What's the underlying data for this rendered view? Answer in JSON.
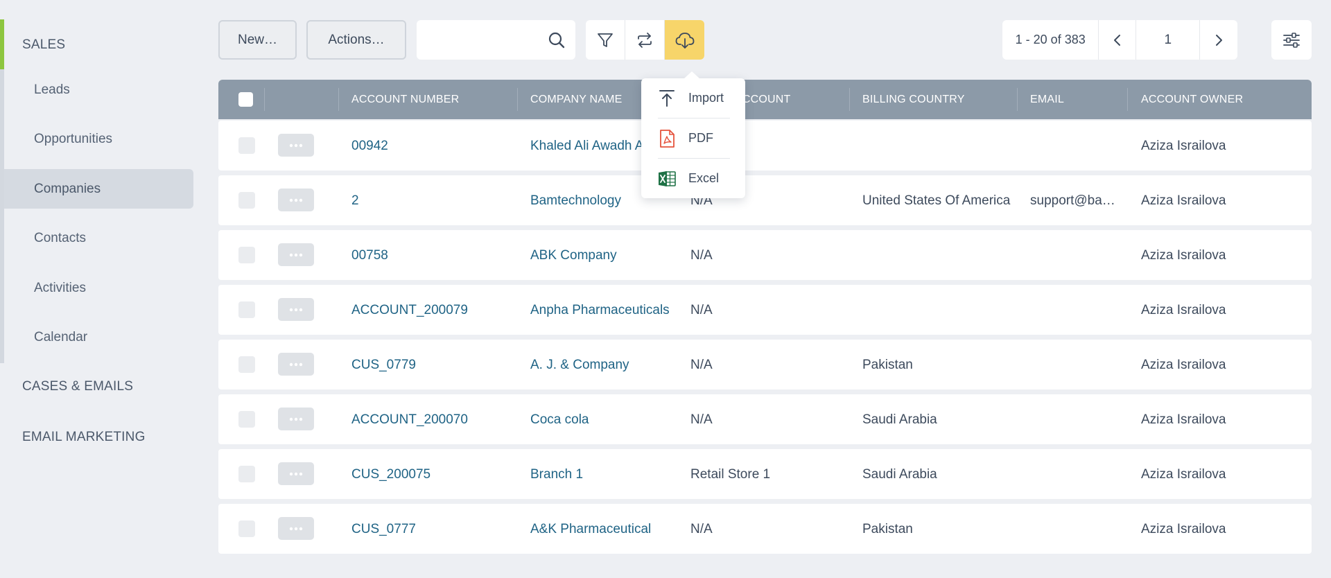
{
  "sidebar": {
    "sections": [
      {
        "title": "SALES"
      },
      {
        "title": "CASES & EMAILS"
      },
      {
        "title": "EMAIL MARKETING"
      }
    ],
    "items": [
      {
        "label": "Leads"
      },
      {
        "label": "Opportunities"
      },
      {
        "label": "Companies"
      },
      {
        "label": "Contacts"
      },
      {
        "label": "Activities"
      },
      {
        "label": "Calendar"
      }
    ],
    "active_item": "Companies",
    "accent_color": "#8dc63f"
  },
  "toolbar": {
    "new_label": "New…",
    "actions_label": "Actions…",
    "search": {
      "value": "",
      "placeholder": ""
    },
    "icons": [
      "filter-icon",
      "refresh-icon",
      "cloud-download-icon"
    ],
    "highlight_color": "#f7d56a"
  },
  "pagination": {
    "range": "1 - 20 of 383",
    "page": "1"
  },
  "export_menu": {
    "items": [
      {
        "label": "Import",
        "icon": "upload-icon"
      },
      {
        "label": "PDF",
        "icon": "pdf-file-icon"
      },
      {
        "label": "Excel",
        "icon": "excel-file-icon"
      }
    ]
  },
  "table": {
    "columns": [
      "ACCOUNT NUMBER",
      "COMPANY NAME",
      "ACCOUNT",
      "BILLING COUNTRY",
      "EMAIL",
      "ACCOUNT OWNER"
    ],
    "header_color": "#8c9aa8",
    "link_color": "#1f6385",
    "rows": [
      {
        "account": "00942",
        "company": "Khaled Ali Awadh Alrwyla",
        "parent": "",
        "country": "",
        "email": "",
        "owner": "Aziza Israilova"
      },
      {
        "account": "2",
        "company": "Bamtechnology",
        "parent": "N/A",
        "country": "United States Of America",
        "email": "support@ba…",
        "owner": "Aziza Israilova"
      },
      {
        "account": "00758",
        "company": "ABK Company",
        "parent": "N/A",
        "country": "",
        "email": "",
        "owner": "Aziza Israilova"
      },
      {
        "account": "ACCOUNT_200079",
        "company": "Anpha Pharmaceuticals",
        "parent": "N/A",
        "country": "",
        "email": "",
        "owner": "Aziza Israilova"
      },
      {
        "account": "CUS_0779",
        "company": "A. J. & Company",
        "parent": "N/A",
        "country": "Pakistan",
        "email": "",
        "owner": "Aziza Israilova"
      },
      {
        "account": "ACCOUNT_200070",
        "company": "Coca cola",
        "parent": "N/A",
        "country": "Saudi Arabia",
        "email": "",
        "owner": "Aziza Israilova"
      },
      {
        "account": "CUS_200075",
        "company": "Branch 1",
        "parent": "Retail Store 1",
        "country": "Saudi Arabia",
        "email": "",
        "owner": "Aziza Israilova"
      },
      {
        "account": "CUS_0777",
        "company": "A&K Pharmaceutical",
        "parent": "N/A",
        "country": "Pakistan",
        "email": "",
        "owner": "Aziza Israilova"
      }
    ]
  }
}
